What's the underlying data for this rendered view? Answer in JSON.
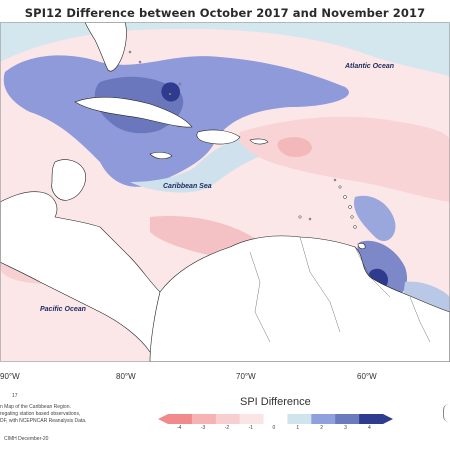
{
  "title": "SPI12 Difference between October 2017 and November 2017",
  "labels": {
    "atlantic": "Atlantic Ocean",
    "caribbean": "Caribbean Sea",
    "pacific": "Pacific Ocean"
  },
  "axis": {
    "x_ticks": [
      "90°W",
      "80°W",
      "70°W",
      "60°W"
    ]
  },
  "notes": {
    "footnote_number": "17",
    "caption_lines": [
      "n Map of the Caribbean Region.",
      "regating station based observations,",
      "DF, with NCEPNCAR Reanalysis Data."
    ],
    "credit": "CIMH December-20"
  },
  "legend": {
    "title": "SPI Difference",
    "values": [
      "-4",
      "-3",
      "-2",
      "-1",
      "0",
      "1",
      "2",
      "3",
      "4"
    ],
    "colors": [
      "#f08a8c",
      "#f5b3b3",
      "#f8cfd0",
      "#fbe4e4",
      "#ffffff",
      "#cfe4ec",
      "#8fa0dc",
      "#6b79bd",
      "#2f3b8f"
    ]
  }
}
